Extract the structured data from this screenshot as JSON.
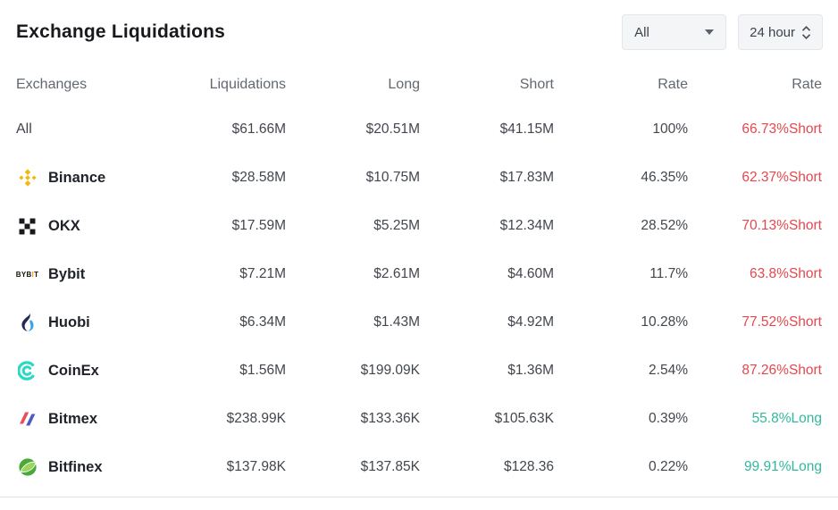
{
  "header": {
    "title": "Exchange Liquidations",
    "filter_dropdown": {
      "value": "All"
    },
    "time_dropdown": {
      "value": "24 hour"
    }
  },
  "colors": {
    "short_text": "#e4484e",
    "long_text": "#33b89e",
    "accent_binance": "#f0b90b",
    "accent_bybit": "#f7a600",
    "accent_huobi_blue": "#3aa4e0",
    "accent_coinex": "#2bd9c2",
    "accent_bitmex_red": "#e8515a",
    "accent_bitmex_blue": "#4a5bc4",
    "accent_bitfinex_green": "#9bd45f"
  },
  "icons": {
    "binance-icon": "gold five-diamond logo",
    "okx-icon": "black checkered squares logo",
    "bybit-icon": "BYBIT wordmark logo",
    "huobi-icon": "blue flame logo",
    "coinex-icon": "teal C ring logo",
    "bitmex-icon": "red and blue slash logo",
    "bitfinex-icon": "green leaf circle logo"
  },
  "table": {
    "columns": [
      "Exchanges",
      "Liquidations",
      "Long",
      "Short",
      "Rate",
      "Rate"
    ],
    "rows": [
      {
        "exchange": "All",
        "icon": "none",
        "liquidations": "$61.66M",
        "long": "$20.51M",
        "short": "$41.15M",
        "rate": "100%",
        "dominance": "66.73%Short",
        "side": "short"
      },
      {
        "exchange": "Binance",
        "icon": "binance-icon",
        "liquidations": "$28.58M",
        "long": "$10.75M",
        "short": "$17.83M",
        "rate": "46.35%",
        "dominance": "62.37%Short",
        "side": "short"
      },
      {
        "exchange": "OKX",
        "icon": "okx-icon",
        "liquidations": "$17.59M",
        "long": "$5.25M",
        "short": "$12.34M",
        "rate": "28.52%",
        "dominance": "70.13%Short",
        "side": "short"
      },
      {
        "exchange": "Bybit",
        "icon": "bybit-icon",
        "liquidations": "$7.21M",
        "long": "$2.61M",
        "short": "$4.60M",
        "rate": "11.7%",
        "dominance": "63.8%Short",
        "side": "short"
      },
      {
        "exchange": "Huobi",
        "icon": "huobi-icon",
        "liquidations": "$6.34M",
        "long": "$1.43M",
        "short": "$4.92M",
        "rate": "10.28%",
        "dominance": "77.52%Short",
        "side": "short"
      },
      {
        "exchange": "CoinEx",
        "icon": "coinex-icon",
        "liquidations": "$1.56M",
        "long": "$199.09K",
        "short": "$1.36M",
        "rate": "2.54%",
        "dominance": "87.26%Short",
        "side": "short"
      },
      {
        "exchange": "Bitmex",
        "icon": "bitmex-icon",
        "liquidations": "$238.99K",
        "long": "$133.36K",
        "short": "$105.63K",
        "rate": "0.39%",
        "dominance": "55.8%Long",
        "side": "long"
      },
      {
        "exchange": "Bitfinex",
        "icon": "bitfinex-icon",
        "liquidations": "$137.98K",
        "long": "$137.85K",
        "short": "$128.36",
        "rate": "0.22%",
        "dominance": "99.91%Long",
        "side": "long"
      }
    ]
  }
}
